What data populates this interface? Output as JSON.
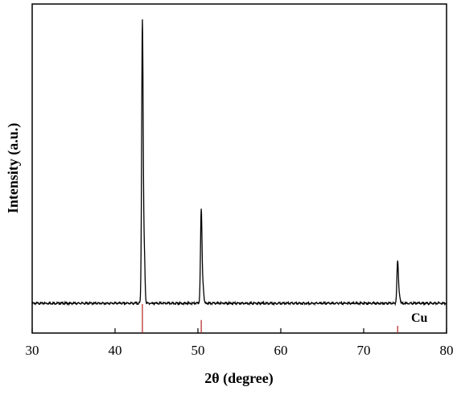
{
  "chart_data": {
    "type": "line",
    "title": "",
    "xlabel": "2θ (degree)",
    "ylabel": "Intensity (a.u.)",
    "xlim": [
      30,
      80
    ],
    "ylim": [
      0,
      100
    ],
    "grid": false,
    "x_ticks": [
      30,
      40,
      50,
      60,
      70,
      80
    ],
    "series": [
      {
        "color": "#000000",
        "peaks": [
          {
            "x": 43.3,
            "height": 100
          },
          {
            "x": 50.4,
            "height": 33
          },
          {
            "x": 74.1,
            "height": 15
          }
        ],
        "baseline": 0
      }
    ],
    "reference": {
      "label": "Cu",
      "color": "#b22222",
      "positions": [
        43.3,
        50.4,
        74.1
      ],
      "heights": [
        1.0,
        0.45,
        0.25
      ]
    }
  }
}
